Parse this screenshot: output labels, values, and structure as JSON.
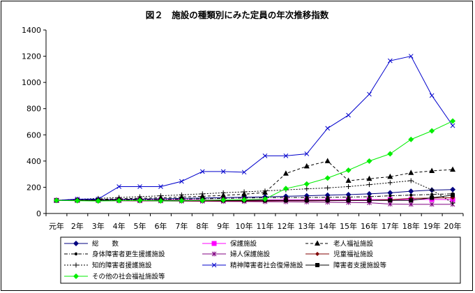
{
  "chart_data": {
    "type": "line",
    "title": "図２　施設の種類別にみた定員の年次推移指数",
    "xlabel": "",
    "ylabel": "",
    "ylim": [
      0,
      1400
    ],
    "yticks": [
      0,
      200,
      400,
      600,
      800,
      1000,
      1200,
      1400
    ],
    "grid": false,
    "legend_position": "bottom",
    "categories": [
      "元年",
      "2年",
      "3年",
      "4年",
      "5年",
      "6年",
      "7年",
      "8年",
      "9年",
      "10年",
      "11年",
      "12年",
      "13年",
      "14年",
      "15年",
      "16年",
      "17年",
      "18年",
      "19年",
      "20年"
    ],
    "series": [
      {
        "name": "総　　数",
        "color": "#000080",
        "dash": "",
        "marker": "diamond",
        "values": [
          100,
          102,
          105,
          108,
          110,
          112,
          115,
          118,
          121,
          124,
          127,
          131,
          135,
          140,
          144,
          150,
          158,
          170,
          178,
          182
        ]
      },
      {
        "name": "保護施設",
        "color": "#ff00ff",
        "dash": "",
        "marker": "square",
        "values": [
          100,
          101,
          101,
          102,
          102,
          102,
          103,
          103,
          103,
          103,
          104,
          104,
          104,
          105,
          105,
          106,
          106,
          107,
          107,
          106
        ]
      },
      {
        "name": "老人福祉施設",
        "color": "#000000",
        "dash": "4,3",
        "marker": "triangle",
        "values": [
          100,
          103,
          108,
          112,
          116,
          120,
          125,
          131,
          138,
          147,
          160,
          305,
          360,
          400,
          250,
          265,
          280,
          310,
          325,
          335
        ]
      },
      {
        "name": "身体障害者更生援護施設",
        "color": "#000000",
        "dash": "5,2,1,2",
        "marker": "dot",
        "values": [
          100,
          102,
          103,
          105,
          107,
          108,
          110,
          112,
          115,
          118,
          120,
          121,
          122,
          123,
          125,
          128,
          135,
          140,
          145,
          150
        ]
      },
      {
        "name": "婦人保護施設",
        "color": "#800080",
        "dash": "",
        "marker": "asterisk",
        "values": [
          100,
          99,
          98,
          97,
          96,
          95,
          94,
          93,
          92,
          91,
          90,
          89,
          88,
          86,
          84,
          82,
          72,
          70,
          70,
          70
        ]
      },
      {
        "name": "児童福祉施設",
        "color": "#800000",
        "dash": "",
        "marker": "diamond-small",
        "values": [
          100,
          99,
          98,
          98,
          97,
          97,
          96,
          96,
          96,
          96,
          96,
          97,
          97,
          98,
          99,
          100,
          105,
          115,
          118,
          120
        ]
      },
      {
        "name": "知的障害者援護施設",
        "color": "#000000",
        "dash": "2,2",
        "marker": "plus",
        "values": [
          100,
          108,
          115,
          122,
          128,
          135,
          142,
          150,
          158,
          165,
          172,
          180,
          188,
          195,
          205,
          220,
          235,
          250,
          180,
          80
        ]
      },
      {
        "name": "精神障害者社会復帰施設",
        "color": "#0000cc",
        "dash": "",
        "marker": "x",
        "values": [
          100,
          110,
          110,
          205,
          205,
          205,
          245,
          320,
          320,
          315,
          440,
          440,
          455,
          650,
          750,
          910,
          1165,
          1200,
          900,
          670
        ]
      },
      {
        "name": "障害者支援施設等",
        "color": "#000000",
        "dash": "",
        "marker": "square-small",
        "values": [
          100,
          100,
          100,
          100,
          100,
          100,
          100,
          100,
          100,
          100,
          100,
          100,
          100,
          100,
          100,
          100,
          100,
          100,
          120,
          140
        ]
      },
      {
        "name": "その他の社会福祉施設等",
        "color": "#00ee00",
        "dash": "",
        "marker": "diamond-green",
        "values": [
          100,
          97,
          95,
          98,
          100,
          96,
          97,
          100,
          103,
          105,
          110,
          190,
          225,
          270,
          330,
          400,
          455,
          565,
          630,
          705
        ]
      }
    ]
  }
}
